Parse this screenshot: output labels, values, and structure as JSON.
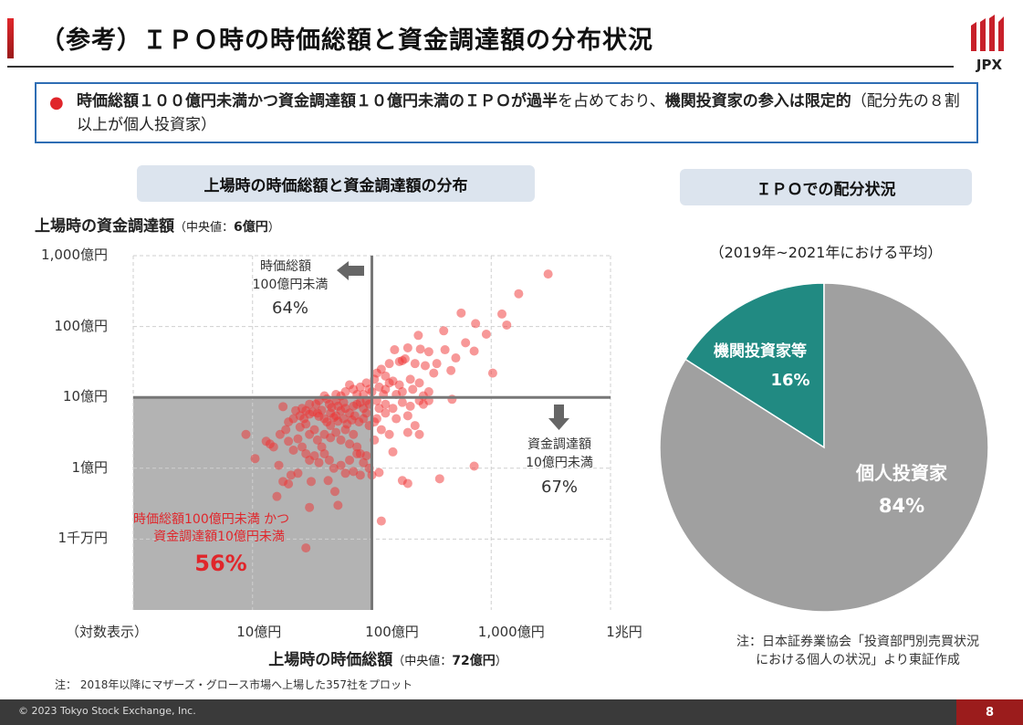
{
  "header": {
    "title": "（参考）ＩＰＯ時の時価総額と資金調達額の分布状況",
    "logo_text": "JPX"
  },
  "summary": {
    "bullet_bold1": "時価総額１００億円未満かつ資金調達額１０億円未満のＩＰＯが過半",
    "normal1": "を占めており、",
    "bullet_bold2": "機関投資家の参入は限定的",
    "normal2": "（配分先の８割以上が個人投資家）"
  },
  "left_section": {
    "label": "上場時の時価総額と資金調達額の分布"
  },
  "right_section": {
    "label": "ＩＰＯでの配分状況"
  },
  "chart_data": [
    {
      "type": "scatter",
      "ylabel": "上場時の資金調達額",
      "ylabel_median_prefix": "（中央値：",
      "ylabel_median": "6億円",
      "ylabel_median_suffix": "）",
      "xlabel": "上場時の時価総額",
      "xlabel_median_prefix": "（中央値：",
      "xlabel_median": "72億円",
      "xlabel_median_suffix": "）",
      "x_scale": "log",
      "y_scale": "log",
      "x_unit": "億円",
      "y_unit": "億円",
      "xlim": [
        1,
        10000
      ],
      "ylim": [
        0.01,
        1000
      ],
      "x_tick_labels": [
        "10億円",
        "100億円",
        "1,000億円",
        "1兆円"
      ],
      "x_tick_values": [
        10,
        100,
        1000,
        10000
      ],
      "y_tick_labels": [
        "1,000億円",
        "100億円",
        "10億円",
        "1億円",
        "1千万円"
      ],
      "y_tick_values": [
        1000,
        100,
        10,
        1,
        0.1
      ],
      "scale_note": "（対数表示）",
      "grid": true,
      "threshold_x": 100,
      "threshold_y": 10,
      "point_color": "#f03232",
      "shade_color": "#b3b3b3",
      "annotations": {
        "left": {
          "line1": "時価総額",
          "line2": "100億円未満",
          "pct": "64%"
        },
        "below": {
          "line1": "資金調達額",
          "line2": "10億円未満",
          "pct": "67%"
        },
        "both": {
          "line1": "時価総額100億円未満 かつ",
          "line2": "資金調達額10億円未満",
          "pct": "56%"
        }
      },
      "points": [
        [
          3000,
          550
        ],
        [
          1700,
          290
        ],
        [
          560,
          155
        ],
        [
          1230,
          150
        ],
        [
          1350,
          105
        ],
        [
          740,
          110
        ],
        [
          910,
          78
        ],
        [
          400,
          87
        ],
        [
          245,
          75
        ],
        [
          610,
          59
        ],
        [
          720,
          45
        ],
        [
          1030,
          22
        ],
        [
          505,
          36
        ],
        [
          410,
          47
        ],
        [
          460,
          24
        ],
        [
          330,
          22
        ],
        [
          155,
          47
        ],
        [
          200,
          50
        ],
        [
          255,
          48
        ],
        [
          180,
          33
        ],
        [
          300,
          44
        ],
        [
          190,
          35
        ],
        [
          170,
          32
        ],
        [
          230,
          30
        ],
        [
          140,
          30
        ],
        [
          120,
          25
        ],
        [
          110,
          22
        ],
        [
          130,
          20
        ],
        [
          150,
          17
        ],
        [
          170,
          15
        ],
        [
          210,
          18
        ],
        [
          250,
          16
        ],
        [
          280,
          28
        ],
        [
          350,
          30
        ],
        [
          130,
          13
        ],
        [
          115,
          14
        ],
        [
          105,
          18
        ],
        [
          100,
          12
        ],
        [
          180,
          12
        ],
        [
          220,
          13
        ],
        [
          160,
          11
        ],
        [
          300,
          12
        ],
        [
          270,
          10.5
        ],
        [
          125,
          11
        ],
        [
          140,
          16
        ],
        [
          60,
          12
        ],
        [
          70,
          13
        ],
        [
          80,
          14
        ],
        [
          85,
          11
        ],
        [
          90,
          16
        ],
        [
          75,
          11
        ],
        [
          50,
          11
        ],
        [
          65,
          15
        ],
        [
          95,
          13
        ],
        [
          55,
          10.5
        ],
        [
          40,
          10.5
        ],
        [
          470,
          9.4
        ],
        [
          720,
          1.07
        ],
        [
          370,
          0.71
        ],
        [
          180,
          0.67
        ],
        [
          200,
          0.61
        ],
        [
          150,
          1.7
        ],
        [
          115,
          0.87
        ],
        [
          100,
          0.8
        ],
        [
          120,
          0.18
        ],
        [
          110,
          9
        ],
        [
          130,
          8
        ],
        [
          150,
          7
        ],
        [
          180,
          8.5
        ],
        [
          210,
          7.5
        ],
        [
          250,
          9
        ],
        [
          270,
          8
        ],
        [
          160,
          5
        ],
        [
          130,
          6
        ],
        [
          200,
          5.5
        ],
        [
          230,
          4
        ],
        [
          110,
          5
        ],
        [
          120,
          3.5
        ],
        [
          140,
          3
        ],
        [
          105,
          2.5
        ],
        [
          200,
          3.2
        ],
        [
          250,
          3
        ],
        [
          115,
          7
        ],
        [
          105,
          4.5
        ],
        [
          300,
          9
        ],
        [
          28,
          0.075
        ],
        [
          52,
          0.3
        ],
        [
          30,
          0.28
        ],
        [
          16,
          0.4
        ],
        [
          8.8,
          3.0
        ],
        [
          10.5,
          1.37
        ],
        [
          16.6,
          1.1
        ],
        [
          18,
          7.4
        ],
        [
          49,
          0.47
        ],
        [
          43,
          0.67
        ],
        [
          31,
          0.65
        ],
        [
          18,
          0.65
        ],
        [
          20,
          0.6
        ],
        [
          21,
          0.8
        ],
        [
          24,
          0.85
        ],
        [
          14,
          2.2
        ],
        [
          13,
          2.4
        ],
        [
          15,
          2
        ],
        [
          17,
          3
        ],
        [
          19,
          3.5
        ],
        [
          20,
          4.5
        ],
        [
          22,
          5
        ],
        [
          25,
          5.5
        ],
        [
          27,
          5
        ],
        [
          28,
          4.2
        ],
        [
          30,
          5.8
        ],
        [
          32,
          6.2
        ],
        [
          35,
          6
        ],
        [
          36,
          5.4
        ],
        [
          38,
          6.6
        ],
        [
          40,
          5
        ],
        [
          42,
          4.5
        ],
        [
          45,
          6
        ],
        [
          48,
          5.2
        ],
        [
          50,
          5.5
        ],
        [
          55,
          6.5
        ],
        [
          60,
          7
        ],
        [
          65,
          6
        ],
        [
          70,
          7.5
        ],
        [
          75,
          8
        ],
        [
          80,
          8.5
        ],
        [
          85,
          7
        ],
        [
          90,
          9
        ],
        [
          95,
          8
        ],
        [
          30,
          3
        ],
        [
          33,
          3.5
        ],
        [
          35,
          2.5
        ],
        [
          38,
          2
        ],
        [
          40,
          3
        ],
        [
          45,
          2.7
        ],
        [
          50,
          3.2
        ],
        [
          55,
          2.5
        ],
        [
          60,
          3.5
        ],
        [
          65,
          2.2
        ],
        [
          70,
          3
        ],
        [
          75,
          2
        ],
        [
          80,
          1.6
        ],
        [
          85,
          1.2
        ],
        [
          90,
          1.5
        ],
        [
          95,
          1
        ],
        [
          24,
          2.6
        ],
        [
          26,
          2
        ],
        [
          28,
          1.6
        ],
        [
          30,
          1.3
        ],
        [
          33,
          1.5
        ],
        [
          36,
          1.2
        ],
        [
          40,
          1.6
        ],
        [
          44,
          1.3
        ],
        [
          48,
          1.0
        ],
        [
          55,
          1.1
        ],
        [
          60,
          0.85
        ],
        [
          65,
          1.3
        ],
        [
          70,
          0.9
        ],
        [
          75,
          1.6
        ],
        [
          80,
          0.8
        ],
        [
          22,
          1.8
        ],
        [
          20,
          2.4
        ],
        [
          25,
          3.8
        ],
        [
          45,
          4
        ],
        [
          52,
          4.6
        ],
        [
          58,
          5
        ],
        [
          62,
          4.2
        ],
        [
          68,
          4.8
        ],
        [
          72,
          5.5
        ],
        [
          78,
          4.5
        ],
        [
          85,
          5
        ],
        [
          90,
          6
        ],
        [
          95,
          4
        ],
        [
          26,
          7
        ],
        [
          34,
          8
        ],
        [
          44,
          8
        ],
        [
          50,
          9
        ],
        [
          58,
          8.5
        ],
        [
          42,
          9.5
        ],
        [
          36,
          9
        ],
        [
          30,
          8
        ],
        [
          28,
          6.5
        ],
        [
          23,
          6.5
        ],
        [
          46,
          7.2
        ],
        [
          52,
          7.5
        ]
      ],
      "note": "注： 2018年以降にマザーズ・グロース市場へ上場した357社をプロット"
    },
    {
      "type": "pie",
      "subtitle": "（2019年~2021年における平均）",
      "slices": [
        {
          "label": "機関投資家等",
          "value": 16,
          "value_label": "16%",
          "color": "#218a82"
        },
        {
          "label": "個人投資家",
          "value": 84,
          "value_label": "84%",
          "color": "#a0a0a0"
        }
      ],
      "note_line1": "注：日本証券業協会「投資部門別売買状況",
      "note_line2": "における個人の状況」より東証作成"
    }
  ],
  "footer": {
    "copyright": "© 2023 Tokyo Stock Exchange, Inc.",
    "page": "8"
  }
}
